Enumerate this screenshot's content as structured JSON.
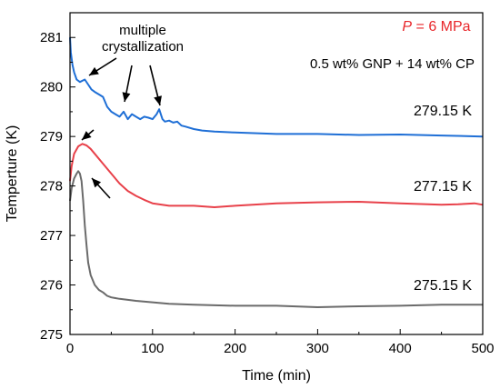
{
  "chart_data": {
    "type": "line",
    "xlabel": "Time (min)",
    "ylabel": "Temperture (K)",
    "xlim": [
      0,
      500
    ],
    "ylim": [
      275,
      281.5
    ],
    "xticks": [
      "0",
      "100",
      "200",
      "300",
      "400",
      "500"
    ],
    "yticks": [
      "275",
      "276",
      "277",
      "278",
      "279",
      "280",
      "281"
    ],
    "grid": false,
    "annotations": {
      "pressure_label": "P",
      "pressure_value": " = 6 MPa",
      "pressure_color": "#e8262a",
      "composition": "0.5 wt% GNP + 14 wt% CP",
      "crystallization_line1": "multiple",
      "crystallization_line2": "crystallization"
    },
    "series": [
      {
        "label": "279.15 K",
        "color": "#1f6fd6",
        "points": [
          [
            0,
            281.0
          ],
          [
            1,
            280.7
          ],
          [
            3,
            280.45
          ],
          [
            5,
            280.3
          ],
          [
            8,
            280.15
          ],
          [
            12,
            280.1
          ],
          [
            18,
            280.15
          ],
          [
            22,
            280.05
          ],
          [
            26,
            279.95
          ],
          [
            30,
            279.9
          ],
          [
            35,
            279.85
          ],
          [
            40,
            279.8
          ],
          [
            45,
            279.6
          ],
          [
            50,
            279.5
          ],
          [
            55,
            279.45
          ],
          [
            60,
            279.4
          ],
          [
            65,
            279.5
          ],
          [
            70,
            279.35
          ],
          [
            75,
            279.45
          ],
          [
            80,
            279.4
          ],
          [
            85,
            279.35
          ],
          [
            90,
            279.4
          ],
          [
            95,
            279.38
          ],
          [
            100,
            279.35
          ],
          [
            105,
            279.45
          ],
          [
            108,
            279.55
          ],
          [
            112,
            279.35
          ],
          [
            115,
            279.3
          ],
          [
            120,
            279.32
          ],
          [
            125,
            279.28
          ],
          [
            130,
            279.3
          ],
          [
            135,
            279.22
          ],
          [
            140,
            279.2
          ],
          [
            150,
            279.15
          ],
          [
            160,
            279.12
          ],
          [
            175,
            279.1
          ],
          [
            200,
            279.08
          ],
          [
            250,
            279.05
          ],
          [
            300,
            279.05
          ],
          [
            350,
            279.03
          ],
          [
            400,
            279.04
          ],
          [
            450,
            279.02
          ],
          [
            500,
            279.0
          ]
        ]
      },
      {
        "label": "277.15 K",
        "color": "#e8414a",
        "points": [
          [
            0,
            278.1
          ],
          [
            2,
            278.4
          ],
          [
            5,
            278.65
          ],
          [
            10,
            278.8
          ],
          [
            15,
            278.85
          ],
          [
            20,
            278.82
          ],
          [
            25,
            278.75
          ],
          [
            30,
            278.65
          ],
          [
            40,
            278.45
          ],
          [
            50,
            278.25
          ],
          [
            60,
            278.05
          ],
          [
            70,
            277.9
          ],
          [
            80,
            277.8
          ],
          [
            90,
            277.72
          ],
          [
            100,
            277.65
          ],
          [
            120,
            277.6
          ],
          [
            150,
            277.6
          ],
          [
            175,
            277.57
          ],
          [
            200,
            277.6
          ],
          [
            250,
            277.65
          ],
          [
            300,
            277.67
          ],
          [
            350,
            277.68
          ],
          [
            400,
            277.65
          ],
          [
            450,
            277.62
          ],
          [
            470,
            277.63
          ],
          [
            490,
            277.65
          ],
          [
            500,
            277.62
          ]
        ]
      },
      {
        "label": "275.15 K",
        "color": "#6b6b6b",
        "points": [
          [
            0,
            277.7
          ],
          [
            2,
            277.95
          ],
          [
            5,
            278.15
          ],
          [
            8,
            278.25
          ],
          [
            10,
            278.3
          ],
          [
            12,
            278.25
          ],
          [
            14,
            278.1
          ],
          [
            16,
            277.7
          ],
          [
            18,
            277.2
          ],
          [
            20,
            276.8
          ],
          [
            22,
            276.45
          ],
          [
            25,
            276.2
          ],
          [
            30,
            276.0
          ],
          [
            35,
            275.9
          ],
          [
            40,
            275.85
          ],
          [
            45,
            275.78
          ],
          [
            50,
            275.75
          ],
          [
            60,
            275.72
          ],
          [
            70,
            275.7
          ],
          [
            80,
            275.68
          ],
          [
            100,
            275.65
          ],
          [
            120,
            275.62
          ],
          [
            150,
            275.6
          ],
          [
            200,
            275.58
          ],
          [
            250,
            275.58
          ],
          [
            300,
            275.55
          ],
          [
            350,
            275.57
          ],
          [
            400,
            275.58
          ],
          [
            450,
            275.6
          ],
          [
            500,
            275.6
          ]
        ]
      }
    ]
  }
}
